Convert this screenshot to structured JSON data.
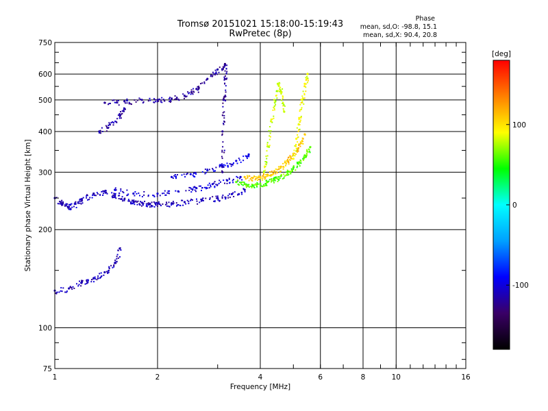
{
  "header": {
    "title_line1": "Tromsø 20151021 15:18:00-15:19:43",
    "title_line2": "RwPretec (8p)",
    "stats_heading": "Phase",
    "stats_o": "mean, sd,O: -98.8, 15.1",
    "stats_x": "mean, sd,X:  90.4, 20.8"
  },
  "chart_data": {
    "type": "scatter",
    "xlabel": "Frequency [MHz]",
    "ylabel": "Stationary phase Virtual Height [km]",
    "xscale": "log",
    "yscale": "log",
    "xlim": [
      1,
      16
    ],
    "ylim": [
      75,
      750
    ],
    "x_ticks": [
      1,
      2,
      4,
      6,
      8,
      10,
      16
    ],
    "x_tick_labels": [
      "1",
      "2",
      "4",
      "6",
      "8",
      "10",
      "16"
    ],
    "y_ticks": [
      75,
      100,
      200,
      300,
      400,
      500,
      600,
      750
    ],
    "y_tick_labels": [
      "75",
      "100",
      "200",
      "300",
      "400",
      "500",
      "600",
      "750"
    ],
    "grid": true,
    "colorbar": {
      "label": "[deg]",
      "range": [
        -180,
        180
      ],
      "ticks": [
        100,
        0,
        -100
      ],
      "tick_labels": [
        "100",
        "0",
        "-100"
      ],
      "colors": [
        "#000000",
        "#3a0066",
        "#0000ff",
        "#00a0ff",
        "#00ffff",
        "#00ff00",
        "#ffff00",
        "#ff8000",
        "#ff0000"
      ]
    },
    "traces": [
      {
        "name": "",
        "color_phase": -110,
        "x": [
          1.0,
          1.05,
          1.1,
          1.15,
          1.2,
          1.3,
          1.4,
          1.5,
          1.6,
          1.7,
          1.8,
          1.9,
          2.0,
          2.2,
          2.4,
          2.7,
          3.0,
          3.3,
          3.6
        ],
        "y": [
          250,
          240,
          235,
          240,
          248,
          258,
          262,
          255,
          248,
          244,
          242,
          240,
          240,
          241,
          243,
          246,
          250,
          257,
          265
        ]
      },
      {
        "name": "",
        "color_phase": -105,
        "x": [
          1.5,
          1.7,
          2.0,
          2.3,
          2.6,
          2.9,
          3.2,
          3.5
        ],
        "y": [
          265,
          258,
          258,
          262,
          268,
          276,
          283,
          290
        ]
      },
      {
        "name": "",
        "color_phase": -100,
        "x": [
          2.2,
          2.5,
          2.8,
          3.1,
          3.4,
          3.7
        ],
        "y": [
          290,
          296,
          304,
          314,
          325,
          340
        ]
      },
      {
        "name": "",
        "color_phase": -112,
        "x": [
          1.0,
          1.1,
          1.2,
          1.3,
          1.4,
          1.5,
          1.55
        ],
        "y": [
          130,
          132,
          138,
          142,
          148,
          158,
          175
        ]
      },
      {
        "name": "",
        "color_phase": -115,
        "x": [
          1.35,
          1.45,
          1.55,
          1.6
        ],
        "y": [
          400,
          420,
          450,
          470
        ]
      },
      {
        "name": "",
        "color_phase": -118,
        "x": [
          1.4,
          1.6,
          1.8,
          2.0,
          2.2,
          2.4,
          2.6,
          2.8,
          3.0,
          3.15
        ],
        "y": [
          490,
          495,
          500,
          500,
          505,
          515,
          540,
          580,
          620,
          640
        ]
      },
      {
        "name": "",
        "color_phase": -120,
        "x": [
          3.1,
          3.1,
          3.12,
          3.15,
          3.15
        ],
        "y": [
          300,
          400,
          500,
          580,
          640
        ]
      },
      {
        "name": "",
        "color_phase": 60,
        "x": [
          3.4,
          3.6,
          3.8,
          4.0,
          4.2,
          4.4,
          4.6,
          4.8,
          5.0,
          5.2,
          5.4,
          5.6
        ],
        "y": [
          280,
          276,
          274,
          276,
          280,
          285,
          292,
          300,
          310,
          322,
          338,
          358
        ]
      },
      {
        "name": "",
        "color_phase": 110,
        "x": [
          3.6,
          3.8,
          4.0,
          4.2,
          4.4,
          4.6,
          4.8,
          5.0,
          5.2,
          5.4
        ],
        "y": [
          290,
          288,
          290,
          295,
          302,
          312,
          325,
          342,
          365,
          392
        ]
      },
      {
        "name": "",
        "color_phase": 80,
        "x": [
          4.1,
          4.2,
          4.3,
          4.4,
          4.5,
          4.6,
          4.7
        ],
        "y": [
          300,
          360,
          430,
          500,
          560,
          530,
          460
        ]
      },
      {
        "name": "",
        "color_phase": 90,
        "x": [
          5.0,
          5.1,
          5.2,
          5.3,
          5.4,
          5.5
        ],
        "y": [
          330,
          380,
          440,
          500,
          560,
          600
        ]
      }
    ]
  }
}
